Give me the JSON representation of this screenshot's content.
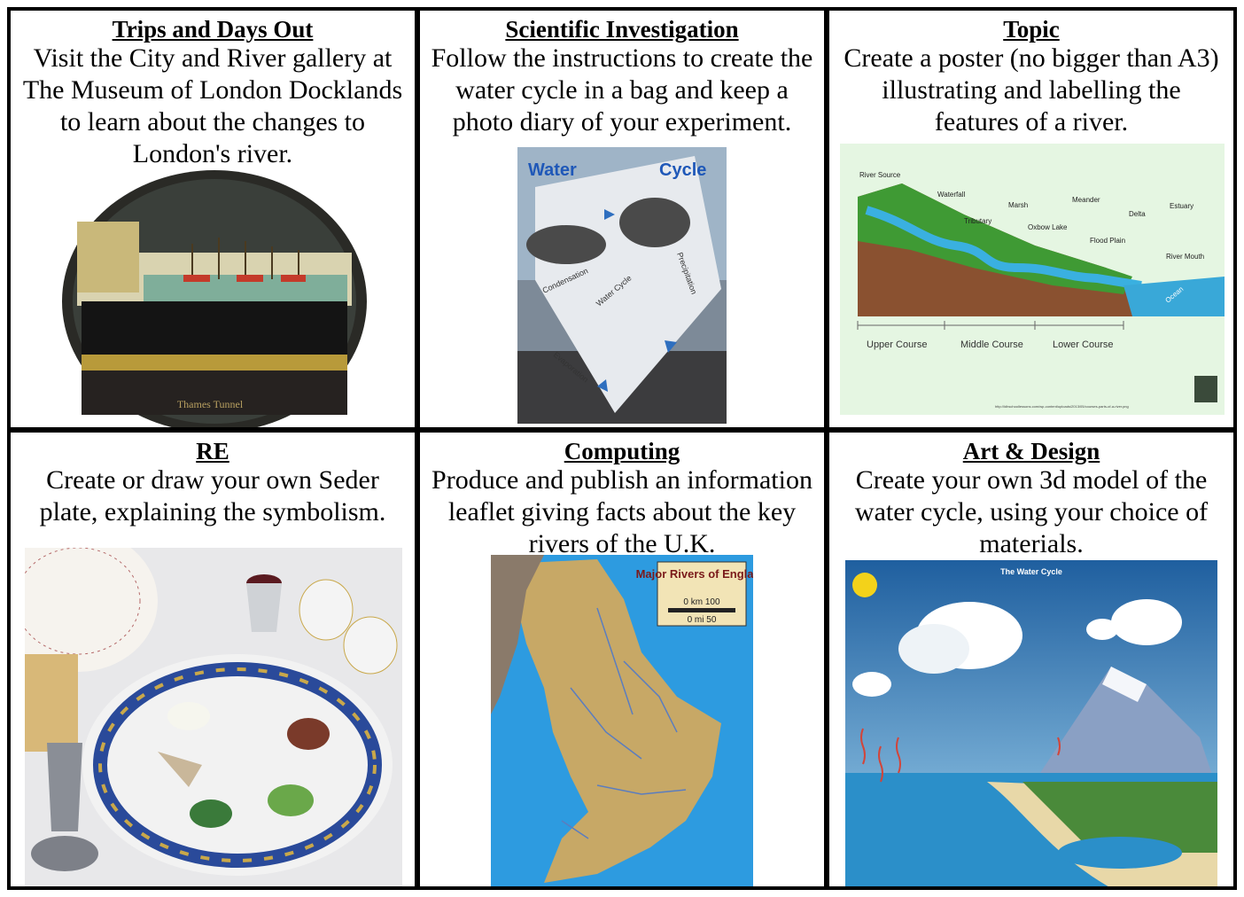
{
  "cells": [
    {
      "heading": "Trips and Days Out",
      "text": "Visit the City and River gallery at The Museum of London Docklands to learn about the changes to London's river.",
      "image": {
        "caption": "Thames Tunnel"
      }
    },
    {
      "heading": "Scientific Investigation",
      "text": "Follow the instructions to create the water cycle in a bag and keep a photo diary of your experiment.",
      "image": {
        "title_left": "Water",
        "title_right": "Cycle",
        "labels": [
          "Condensation",
          "Precipitation",
          "Evaporation",
          "Water Cycle"
        ]
      }
    },
    {
      "heading": "Topic",
      "text": "Create a poster (no bigger than A3) illustrating and labelling the features of a river.",
      "image": {
        "labels": [
          "River Source",
          "Waterfall",
          "Tributary",
          "Marsh",
          "Oxbow Lake",
          "Meander",
          "Flood Plain",
          "Delta",
          "Estuary",
          "River Mouth",
          "Ocean"
        ],
        "courses": [
          "Upper Course",
          "Middle Course",
          "Lower Course"
        ],
        "url": "http://ldhschoollessons.com/wp-content/uploads/2013/05/courses-parts-of-a-river.png"
      }
    },
    {
      "heading": "RE",
      "text": "Create or draw your own Seder plate, explaining the symbolism.",
      "image": {}
    },
    {
      "heading": "Computing",
      "text": "Produce and publish an information leaflet giving facts about the key rivers of the U.K.",
      "image": {
        "map_title": "Major Rivers of England",
        "scale_km": "0 km 100",
        "scale_mi": "0 mi 50"
      }
    },
    {
      "heading": "Art & Design",
      "text": "Create your own 3d model of the water cycle, using your choice of materials.",
      "image": {
        "title": "The Water Cycle"
      }
    }
  ]
}
